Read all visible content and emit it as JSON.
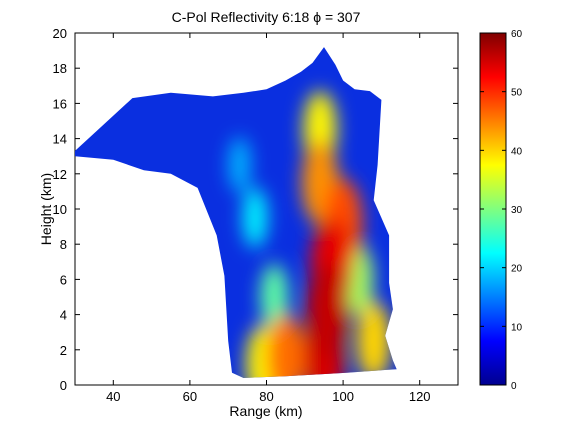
{
  "chart_data": {
    "type": "heatmap",
    "title": "C-Pol Reflectivity   6:18    ϕ = 307",
    "xlabel": "Range (km)",
    "ylabel": "Height (km)",
    "xlim": [
      30,
      130
    ],
    "ylim": [
      0,
      20
    ],
    "x_ticks": [
      40,
      60,
      80,
      100,
      120
    ],
    "y_ticks": [
      0,
      2,
      4,
      6,
      8,
      10,
      12,
      14,
      16,
      18,
      20
    ],
    "colorbar": {
      "range": [
        0,
        60
      ],
      "ticks": [
        0,
        10,
        20,
        30,
        40,
        50,
        60
      ],
      "colormap": "jet"
    },
    "echo_outline": [
      [
        30,
        13.3
      ],
      [
        45,
        16.3
      ],
      [
        55,
        16.6
      ],
      [
        66,
        16.4
      ],
      [
        74,
        16.6
      ],
      [
        80,
        16.8
      ],
      [
        85,
        17.3
      ],
      [
        89,
        17.8
      ],
      [
        92,
        18.3
      ],
      [
        95,
        19.2
      ],
      [
        98,
        18.2
      ],
      [
        100,
        17.3
      ],
      [
        103,
        16.8
      ],
      [
        107,
        16.7
      ],
      [
        110,
        16.2
      ],
      [
        109,
        12.5
      ],
      [
        108,
        10.5
      ],
      [
        112,
        8.5
      ],
      [
        112,
        5.8
      ],
      [
        113,
        4.3
      ],
      [
        111,
        2.8
      ],
      [
        113,
        1.4
      ],
      [
        114,
        0.9
      ],
      [
        101,
        0.7
      ],
      [
        85,
        0.5
      ],
      [
        74,
        0.4
      ],
      [
        71,
        0.7
      ],
      [
        70,
        2.5
      ],
      [
        69,
        6.2
      ],
      [
        67,
        8.5
      ],
      [
        62,
        11.2
      ],
      [
        55,
        12.0
      ],
      [
        48,
        12.2
      ],
      [
        40,
        12.8
      ],
      [
        30,
        13.0
      ]
    ],
    "cores": [
      {
        "range": 97,
        "height": 6.8,
        "dbz": 54
      },
      {
        "range": 96,
        "height": 4.2,
        "dbz": 56
      },
      {
        "range": 95,
        "height": 1.6,
        "dbz": 55
      },
      {
        "range": 100,
        "height": 9.2,
        "dbz": 48
      },
      {
        "range": 94,
        "height": 11.5,
        "dbz": 44
      },
      {
        "range": 94,
        "height": 14.5,
        "dbz": 38
      },
      {
        "range": 85,
        "height": 1.6,
        "dbz": 46
      },
      {
        "range": 79,
        "height": 1.2,
        "dbz": 38
      },
      {
        "range": 108,
        "height": 2.5,
        "dbz": 40
      },
      {
        "range": 82,
        "height": 5.0,
        "dbz": 28
      },
      {
        "range": 77,
        "height": 9.5,
        "dbz": 22
      },
      {
        "range": 73,
        "height": 12.5,
        "dbz": 18
      },
      {
        "range": 104,
        "height": 6.0,
        "dbz": 32
      }
    ]
  },
  "colors": {
    "background": "#ffffff",
    "axis": "#000000",
    "echo_base": "#0a2fe0"
  }
}
